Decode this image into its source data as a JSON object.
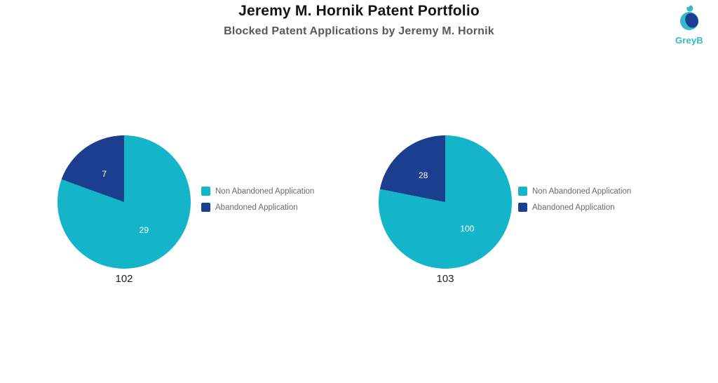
{
  "header": {
    "title": "Jeremy M. Hornik Patent Portfolio",
    "subtitle": "Blocked Patent Applications by Jeremy M. Hornik"
  },
  "logo": {
    "text": "GreyB",
    "teal": "#33bac7",
    "navy": "#1c3e8f"
  },
  "colors": {
    "non_abandoned": "#14b5c9",
    "abandoned": "#1c3e8f",
    "title_text": "#141414",
    "subtitle_text": "#595959",
    "legend_text": "#6b6b6b",
    "caption_text": "#222222",
    "slice_label_text": "#ffffff",
    "background": "#ffffff"
  },
  "chart_data": [
    {
      "type": "pie",
      "caption": "102",
      "start_angle_deg": 0,
      "direction": "clockwise",
      "legend_position": "right",
      "slices": [
        {
          "label": "Non Abandoned Application",
          "value": 29,
          "color": "#14b5c9"
        },
        {
          "label": "Abandoned Application",
          "value": 7,
          "color": "#1c3e8f"
        }
      ]
    },
    {
      "type": "pie",
      "caption": "103",
      "start_angle_deg": 0,
      "direction": "clockwise",
      "legend_position": "right",
      "slices": [
        {
          "label": "Non Abandoned Application",
          "value": 100,
          "color": "#14b5c9"
        },
        {
          "label": "Abandoned Application",
          "value": 28,
          "color": "#1c3e8f"
        }
      ]
    }
  ]
}
